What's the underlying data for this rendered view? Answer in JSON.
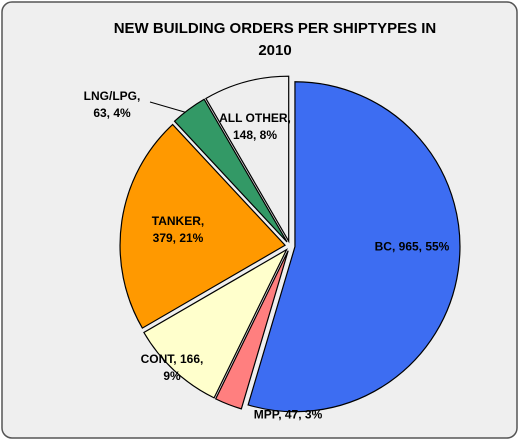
{
  "chart_data": {
    "type": "pie",
    "title": "NEW BUILDING ORDERS PER SHIPTYPES IN 2010",
    "categories": [
      "BC",
      "MPP",
      "CONT",
      "TANKER",
      "LNG/LPG",
      "ALL OTHER"
    ],
    "values": [
      965,
      47,
      166,
      379,
      63,
      148
    ],
    "value_labels": [
      "BC, 965, 55%",
      "MPP, 47, 3%",
      "CONT, 166, 9%",
      "TANKER, 379, 21%",
      "LNG/LPG, 63, 4%",
      "ALL OTHER, 148, 8%"
    ],
    "colors": [
      "#3d6df2",
      "#ff7f7f",
      "#ffffcc",
      "#ff9900",
      "#339966",
      "#eeeeee"
    ]
  }
}
